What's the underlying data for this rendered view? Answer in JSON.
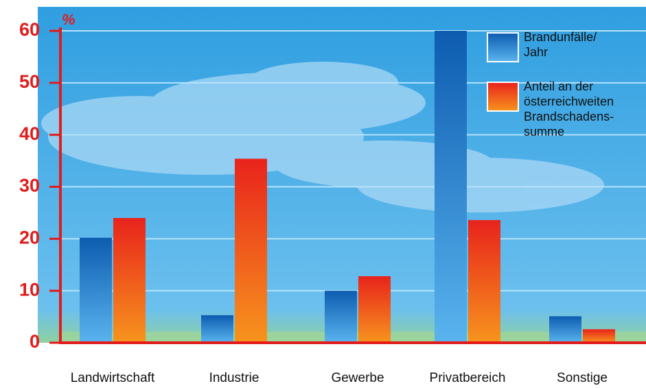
{
  "chart_data": {
    "type": "bar",
    "y_unit": "%",
    "categories": [
      "Landwirtschaft",
      "Industrie",
      "Gewerbe",
      "Privatbereich",
      "Sonstige"
    ],
    "series": [
      {
        "name": "Brandunfälle/ Jahr",
        "color": "#0d5cb0",
        "values": [
          20.2,
          5.3,
          10,
          60,
          5.1
        ]
      },
      {
        "name": "Anteil an der österreichweiten Brandschadens­summe",
        "color": "#e8231c",
        "values": [
          24,
          35.4,
          12.8,
          23.6,
          2.6
        ]
      }
    ],
    "ylim": [
      0,
      60
    ],
    "yticks": [
      0,
      10,
      20,
      30,
      40,
      50,
      60
    ],
    "grid": true,
    "legend": "upper right"
  }
}
